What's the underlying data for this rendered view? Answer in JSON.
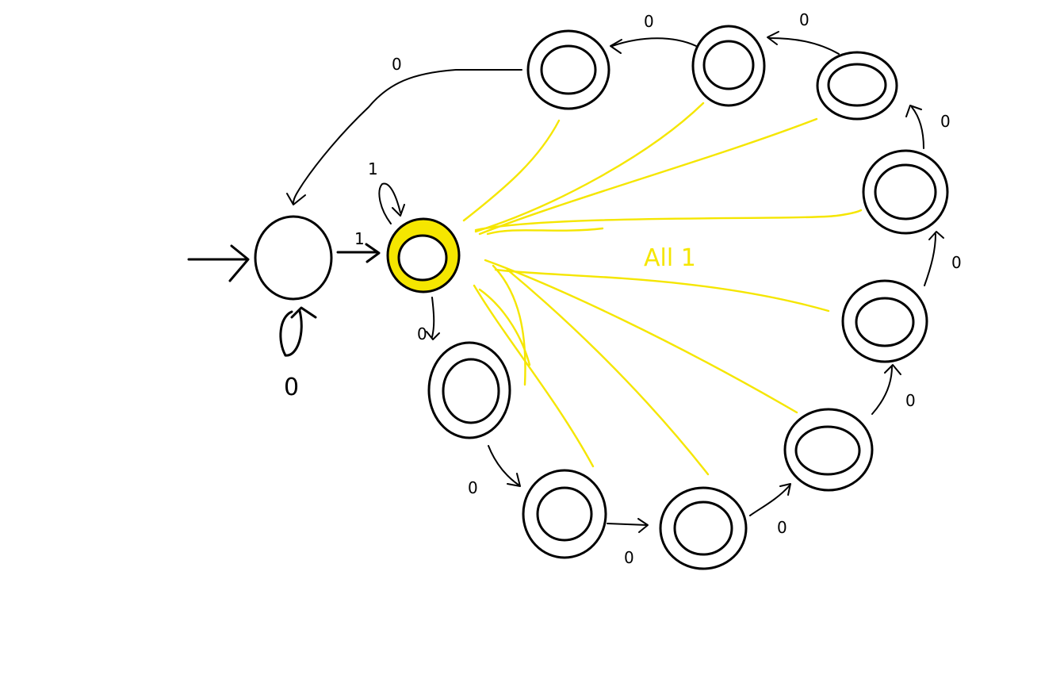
{
  "colors": {
    "ink": "#000000",
    "highlight": "#f5e600",
    "background": "#ffffff"
  },
  "labels": {
    "self_loop_start": "0",
    "start_to_accept": "1",
    "self_loop_accept": "1",
    "accept_to_chain": "0",
    "chain_1_2": "0",
    "chain_2_3": "0",
    "chain_3_4": "0",
    "chain_4_5": "0",
    "chain_5_6": "0",
    "chain_6_7": "0",
    "chain_7_8": "0",
    "chain_8_9": "0",
    "chain_9_10": "0",
    "chain_10_start": "0",
    "all_ones": "All 1"
  }
}
